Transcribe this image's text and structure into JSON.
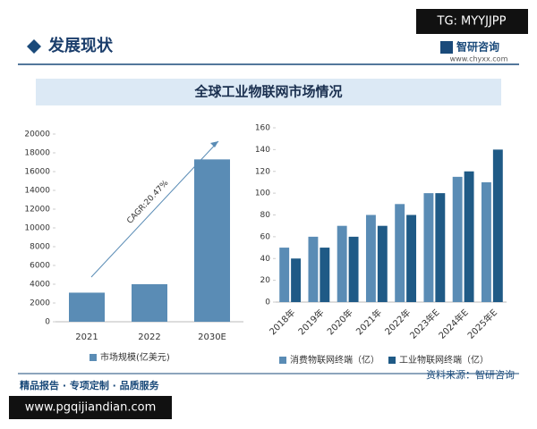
{
  "page": {
    "section_title": "发展现状",
    "logo": "智研咨询",
    "logo_url": "www.chyxx.com",
    "tg": "TG: MYYJJPP",
    "footer_slogan": "精品报告 · 专项定制 · 品质服务",
    "source": "资料来源：智研咨询",
    "site": "www.pgqijiandian.com",
    "banner_title": "全球工业物联网市场情况"
  },
  "chart_data": [
    {
      "type": "bar",
      "categories": [
        "2021",
        "2022",
        "2030E"
      ],
      "series": [
        {
          "name": "市场规模(亿美元)",
          "color": "#5a8cb5",
          "values": [
            3100,
            4000,
            17300
          ]
        }
      ],
      "ylim": [
        0,
        20000
      ],
      "yticks": [
        0,
        2000,
        4000,
        6000,
        8000,
        10000,
        12000,
        14000,
        16000,
        18000,
        20000
      ],
      "annotation": "CAGR:20.47%"
    },
    {
      "type": "bar",
      "categories": [
        "2018年",
        "2019年",
        "2020年",
        "2021年",
        "2022年",
        "2023年E",
        "2024年E",
        "2025年E"
      ],
      "series": [
        {
          "name": "消费物联网终端（亿）",
          "color": "#5a8cb5",
          "values": [
            50,
            60,
            70,
            80,
            90,
            100,
            115,
            110
          ]
        },
        {
          "name": "工业物联网终端（亿）",
          "color": "#1f5a86",
          "values": [
            40,
            50,
            60,
            70,
            80,
            100,
            120,
            140
          ]
        }
      ],
      "ylim": [
        0,
        160
      ],
      "yticks": [
        0,
        20,
        40,
        60,
        80,
        100,
        120,
        140,
        160
      ]
    }
  ]
}
